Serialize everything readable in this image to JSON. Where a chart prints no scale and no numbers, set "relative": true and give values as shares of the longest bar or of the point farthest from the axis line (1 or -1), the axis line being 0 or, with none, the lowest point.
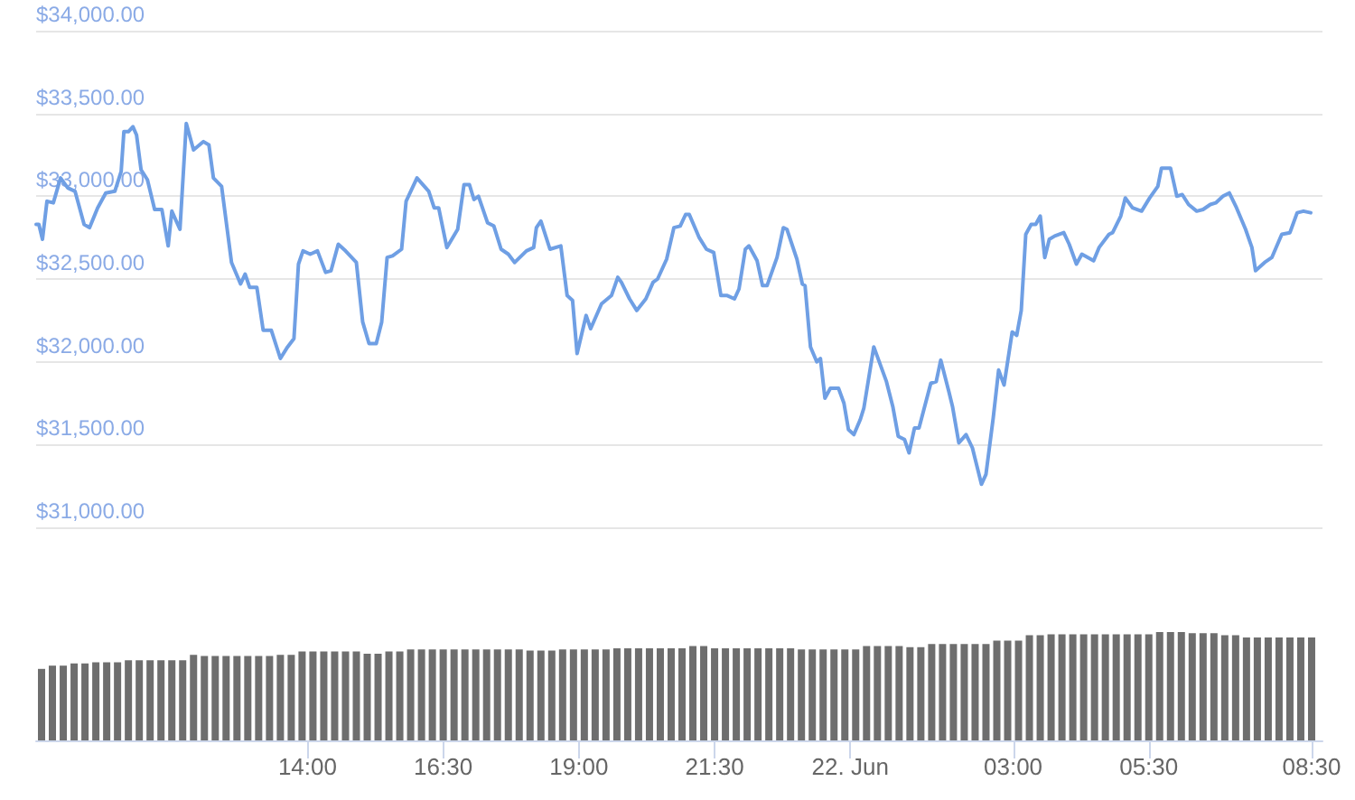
{
  "chart_data": [
    {
      "type": "line",
      "color": "#6f9fe4",
      "xlim": [
        "--06-21T09:00",
        "--06-22T08:42"
      ],
      "ylim": [
        31000,
        34000
      ],
      "yticks": [
        {
          "value": 31000,
          "label": "$31,000.00"
        },
        {
          "value": 31500,
          "label": "$31,500.00"
        },
        {
          "value": 32000,
          "label": "$32,000.00"
        },
        {
          "value": 32500,
          "label": "$32,500.00"
        },
        {
          "value": 33000,
          "label": "$33,000.00"
        },
        {
          "value": 33500,
          "label": "$33,500.00"
        },
        {
          "value": 34000,
          "label": "$34,000.00"
        }
      ],
      "grid": "y",
      "tick_labels": "y",
      "marker": "none",
      "line_style": "solid",
      "x": [
        "--06-21T09:00",
        "--06-21T09:03",
        "--06-21T09:07",
        "--06-21T09:12",
        "--06-21T09:19",
        "--06-21T09:27",
        "--06-21T09:35",
        "--06-21T09:43",
        "--06-21T09:53",
        "--06-21T09:59",
        "--06-21T10:08",
        "--06-21T10:17",
        "--06-21T10:27",
        "--06-21T10:34",
        "--06-21T10:37",
        "--06-21T10:42",
        "--06-21T10:47",
        "--06-21T10:51",
        "--06-21T10:56",
        "--06-21T11:03",
        "--06-21T11:11",
        "--06-21T11:19",
        "--06-21T11:26",
        "--06-21T11:30",
        "--06-21T11:39",
        "--06-21T11:46",
        "--06-21T11:54",
        "--06-21T12:05",
        "--06-21T12:11",
        "--06-21T12:16",
        "--06-21T12:25",
        "--06-21T12:36",
        "--06-21T12:46",
        "--06-21T12:51",
        "--06-21T12:56",
        "--06-21T13:04",
        "--06-21T13:11",
        "--06-21T13:20",
        "--06-21T13:30",
        "--06-21T13:38",
        "--06-21T13:45",
        "--06-21T13:50",
        "--06-21T13:55",
        "--06-21T14:03",
        "--06-21T14:11",
        "--06-21T14:20",
        "--06-21T14:26",
        "--06-21T14:34",
        "--06-21T14:42",
        "--06-21T14:54",
        "--06-21T15:01",
        "--06-21T15:08",
        "--06-21T15:16",
        "--06-21T15:22",
        "--06-21T15:28",
        "--06-21T15:34",
        "--06-21T15:44",
        "--06-21T15:49",
        "--06-21T16:01",
        "--06-21T16:14",
        "--06-21T16:20",
        "--06-21T16:25",
        "--06-21T16:34",
        "--06-21T16:46",
        "--06-21T16:53",
        "--06-21T16:59",
        "--06-21T17:04",
        "--06-21T17:09",
        "--06-21T17:19",
        "--06-21T17:26",
        "--06-21T17:34",
        "--06-21T17:42",
        "--06-21T17:49",
        "--06-21T18:02",
        "--06-21T18:10",
        "--06-21T18:13",
        "--06-21T18:18",
        "--06-21T18:28",
        "--06-21T18:40",
        "--06-21T18:47",
        "--06-21T18:53",
        "--06-21T18:58",
        "--06-21T19:08",
        "--06-21T19:13",
        "--06-21T19:25",
        "--06-21T19:36",
        "--06-21T19:43",
        "--06-21T19:47",
        "--06-21T19:56",
        "--06-21T20:04",
        "--06-21T20:14",
        "--06-21T20:22",
        "--06-21T20:27",
        "--06-21T20:37",
        "--06-21T20:45",
        "--06-21T20:52",
        "--06-21T20:58",
        "--06-21T21:02",
        "--06-21T21:13",
        "--06-21T21:21",
        "--06-21T21:29",
        "--06-21T21:37",
        "--06-21T21:44",
        "--06-21T21:52",
        "--06-21T21:57",
        "--06-21T22:04",
        "--06-21T22:08",
        "--06-21T22:17",
        "--06-21T22:23",
        "--06-21T22:28",
        "--06-21T22:39",
        "--06-21T22:46",
        "--06-21T22:50",
        "--06-21T23:01",
        "--06-21T23:07",
        "--06-21T23:10",
        "--06-21T23:16",
        "--06-21T23:23",
        "--06-21T23:27",
        "--06-21T23:32",
        "--06-21T23:38",
        "--06-21T23:47",
        "--06-21T23:53",
        "--06-21T23:58",
        "--06-22T00:04",
        "--06-22T00:11",
        "--06-22T00:15",
        "--06-22T00:26",
        "--06-22T00:40",
        "--06-22T00:47",
        "--06-22T00:53",
        "--06-22T01:00",
        "--06-22T01:05",
        "--06-22T01:11",
        "--06-22T01:16",
        "--06-22T01:29",
        "--06-22T01:35",
        "--06-22T01:40",
        "--06-22T01:49",
        "--06-22T01:53",
        "--06-22T02:00",
        "--06-22T02:08",
        "--06-22T02:15",
        "--06-22T02:25",
        "--06-22T02:30",
        "--06-22T02:38",
        "--06-22T02:44",
        "--06-22T02:50",
        "--06-22T02:59",
        "--06-22T03:04",
        "--06-22T03:09",
        "--06-22T03:14",
        "--06-22T03:20",
        "--06-22T03:25",
        "--06-22T03:30",
        "--06-22T03:35",
        "--06-22T03:40",
        "--06-22T03:46",
        "--06-22T03:56",
        "--06-22T04:02",
        "--06-22T04:10",
        "--06-22T04:16",
        "--06-22T04:29",
        "--06-22T04:35",
        "--06-22T04:46",
        "--06-22T04:50",
        "--06-22T04:59",
        "--06-22T05:04",
        "--06-22T05:12",
        "--06-22T05:22",
        "--06-22T05:31",
        "--06-22T05:40",
        "--06-22T05:44",
        "--06-22T05:54",
        "--06-22T06:01",
        "--06-22T06:07",
        "--06-22T06:14",
        "--06-22T06:23",
        "--06-22T06:30",
        "--06-22T06:38",
        "--06-22T06:44",
        "--06-22T06:52",
        "--06-22T06:59",
        "--06-22T07:07",
        "--06-22T07:17",
        "--06-22T07:24",
        "--06-22T07:28",
        "--06-22T07:38",
        "--06-22T07:46",
        "--06-22T07:57",
        "--06-22T08:06",
        "--06-22T08:14",
        "--06-22T08:21",
        "--06-22T08:29"
      ],
      "values": [
        32830,
        32830,
        32740,
        32970,
        32960,
        33110,
        33050,
        33030,
        32830,
        32810,
        32930,
        33020,
        33030,
        33150,
        33390,
        33390,
        33420,
        33370,
        33160,
        33100,
        32920,
        32920,
        32700,
        32910,
        32800,
        33440,
        33280,
        33330,
        33310,
        33110,
        33060,
        32600,
        32470,
        32530,
        32450,
        32450,
        32190,
        32190,
        32020,
        32090,
        32140,
        32590,
        32670,
        32650,
        32670,
        32540,
        32550,
        32710,
        32670,
        32600,
        32240,
        32110,
        32110,
        32240,
        32630,
        32640,
        32680,
        32970,
        33110,
        33030,
        32930,
        32930,
        32690,
        32800,
        33070,
        33070,
        32980,
        33000,
        32840,
        32820,
        32680,
        32650,
        32600,
        32670,
        32690,
        32810,
        32850,
        32680,
        32700,
        32400,
        32370,
        32050,
        32280,
        32200,
        32350,
        32400,
        32510,
        32480,
        32380,
        32310,
        32380,
        32480,
        32500,
        32620,
        32810,
        32820,
        32890,
        32890,
        32750,
        32680,
        32660,
        32400,
        32400,
        32380,
        32440,
        32680,
        32700,
        32610,
        32460,
        32460,
        32630,
        32810,
        32800,
        32620,
        32470,
        32460,
        32090,
        32000,
        32020,
        31780,
        31840,
        31840,
        31750,
        31590,
        31560,
        31650,
        31720,
        32090,
        31880,
        31730,
        31550,
        31530,
        31450,
        31600,
        31600,
        31870,
        31880,
        32010,
        31820,
        31730,
        31510,
        31560,
        31480,
        31260,
        31320,
        31660,
        31950,
        31860,
        32180,
        32160,
        32310,
        32770,
        32830,
        32830,
        32880,
        32630,
        32740,
        32760,
        32780,
        32710,
        32590,
        32650,
        32610,
        32690,
        32770,
        32780,
        32880,
        32990,
        32930,
        32910,
        32990,
        33060,
        33170,
        33170,
        33000,
        33010,
        32950,
        32910,
        32920,
        32950,
        32960,
        33000,
        33020,
        32930,
        32800,
        32690,
        32550,
        32600,
        32630,
        32770,
        32780,
        32900,
        32910,
        32900
      ]
    },
    {
      "type": "bar",
      "relative": true,
      "color": "#6e6e6e",
      "xlim": [
        "--06-21T09:00",
        "--06-22T08:42"
      ],
      "tick_labels": "x",
      "grid": false,
      "xticks": [
        {
          "value": "--06-21T14:00",
          "label": "14:00"
        },
        {
          "value": "--06-21T16:30",
          "label": "16:30"
        },
        {
          "value": "--06-21T19:00",
          "label": "19:00"
        },
        {
          "value": "--06-21T21:30",
          "label": "21:30"
        },
        {
          "value": "--06-22T00:00",
          "label": "22. Jun"
        },
        {
          "value": "--06-22T03:00",
          "label": "03:00"
        },
        {
          "value": "--06-22T05:30",
          "label": "05:30"
        },
        {
          "value": "--06-22T08:30",
          "label": "08:30"
        }
      ],
      "x": [
        "--06-21T09:06",
        "--06-21T09:18",
        "--06-21T09:30",
        "--06-21T09:42",
        "--06-21T09:54",
        "--06-21T10:06",
        "--06-21T10:18",
        "--06-21T10:30",
        "--06-21T10:42",
        "--06-21T10:54",
        "--06-21T11:06",
        "--06-21T11:18",
        "--06-21T11:30",
        "--06-21T11:42",
        "--06-21T11:54",
        "--06-21T12:06",
        "--06-21T12:18",
        "--06-21T12:30",
        "--06-21T12:42",
        "--06-21T12:54",
        "--06-21T13:06",
        "--06-21T13:18",
        "--06-21T13:30",
        "--06-21T13:42",
        "--06-21T13:54",
        "--06-21T14:06",
        "--06-21T14:18",
        "--06-21T14:30",
        "--06-21T14:42",
        "--06-21T14:54",
        "--06-21T15:06",
        "--06-21T15:18",
        "--06-21T15:30",
        "--06-21T15:42",
        "--06-21T15:54",
        "--06-21T16:06",
        "--06-21T16:18",
        "--06-21T16:30",
        "--06-21T16:42",
        "--06-21T16:54",
        "--06-21T17:06",
        "--06-21T17:18",
        "--06-21T17:30",
        "--06-21T17:42",
        "--06-21T17:54",
        "--06-21T18:06",
        "--06-21T18:18",
        "--06-21T18:30",
        "--06-21T18:42",
        "--06-21T18:54",
        "--06-21T19:06",
        "--06-21T19:18",
        "--06-21T19:30",
        "--06-21T19:42",
        "--06-21T19:54",
        "--06-21T20:06",
        "--06-21T20:18",
        "--06-21T20:30",
        "--06-21T20:42",
        "--06-21T20:54",
        "--06-21T21:06",
        "--06-21T21:18",
        "--06-21T21:30",
        "--06-21T21:42",
        "--06-21T21:54",
        "--06-21T22:06",
        "--06-21T22:18",
        "--06-21T22:30",
        "--06-21T22:42",
        "--06-21T22:54",
        "--06-21T23:06",
        "--06-21T23:18",
        "--06-21T23:30",
        "--06-21T23:42",
        "--06-21T23:54",
        "--06-22T00:06",
        "--06-22T00:18",
        "--06-22T00:30",
        "--06-22T00:42",
        "--06-22T00:54",
        "--06-22T01:06",
        "--06-22T01:18",
        "--06-22T01:30",
        "--06-22T01:42",
        "--06-22T01:54",
        "--06-22T02:06",
        "--06-22T02:18",
        "--06-22T02:30",
        "--06-22T02:42",
        "--06-22T02:54",
        "--06-22T03:06",
        "--06-22T03:18",
        "--06-22T03:30",
        "--06-22T03:42",
        "--06-22T03:54",
        "--06-22T04:06",
        "--06-22T04:18",
        "--06-22T04:30",
        "--06-22T04:42",
        "--06-22T04:54",
        "--06-22T05:06",
        "--06-22T05:18",
        "--06-22T05:30",
        "--06-22T05:42",
        "--06-22T05:54",
        "--06-22T06:06",
        "--06-22T06:18",
        "--06-22T06:30",
        "--06-22T06:42",
        "--06-22T06:54",
        "--06-22T07:06",
        "--06-22T07:18",
        "--06-22T07:30",
        "--06-22T07:42",
        "--06-22T07:54",
        "--06-22T08:06",
        "--06-22T08:18",
        "--06-22T08:30"
      ],
      "values": [
        0.66,
        0.69,
        0.69,
        0.71,
        0.71,
        0.72,
        0.72,
        0.72,
        0.74,
        0.74,
        0.74,
        0.74,
        0.74,
        0.74,
        0.79,
        0.78,
        0.78,
        0.78,
        0.78,
        0.78,
        0.78,
        0.78,
        0.79,
        0.79,
        0.82,
        0.82,
        0.82,
        0.82,
        0.82,
        0.82,
        0.8,
        0.8,
        0.82,
        0.82,
        0.84,
        0.84,
        0.84,
        0.84,
        0.84,
        0.84,
        0.84,
        0.84,
        0.84,
        0.84,
        0.84,
        0.83,
        0.83,
        0.83,
        0.84,
        0.84,
        0.84,
        0.84,
        0.84,
        0.85,
        0.85,
        0.85,
        0.85,
        0.85,
        0.85,
        0.85,
        0.87,
        0.87,
        0.85,
        0.85,
        0.85,
        0.85,
        0.85,
        0.85,
        0.85,
        0.85,
        0.84,
        0.84,
        0.84,
        0.84,
        0.84,
        0.84,
        0.87,
        0.87,
        0.87,
        0.87,
        0.86,
        0.86,
        0.89,
        0.89,
        0.89,
        0.89,
        0.89,
        0.89,
        0.92,
        0.92,
        0.92,
        0.97,
        0.97,
        0.98,
        0.98,
        0.98,
        0.98,
        0.98,
        0.98,
        0.98,
        0.98,
        0.98,
        0.98,
        1,
        1,
        1,
        0.99,
        0.99,
        0.99,
        0.97,
        0.97,
        0.95,
        0.95,
        0.95,
        0.95,
        0.95,
        0.95,
        0.95
      ]
    }
  ]
}
